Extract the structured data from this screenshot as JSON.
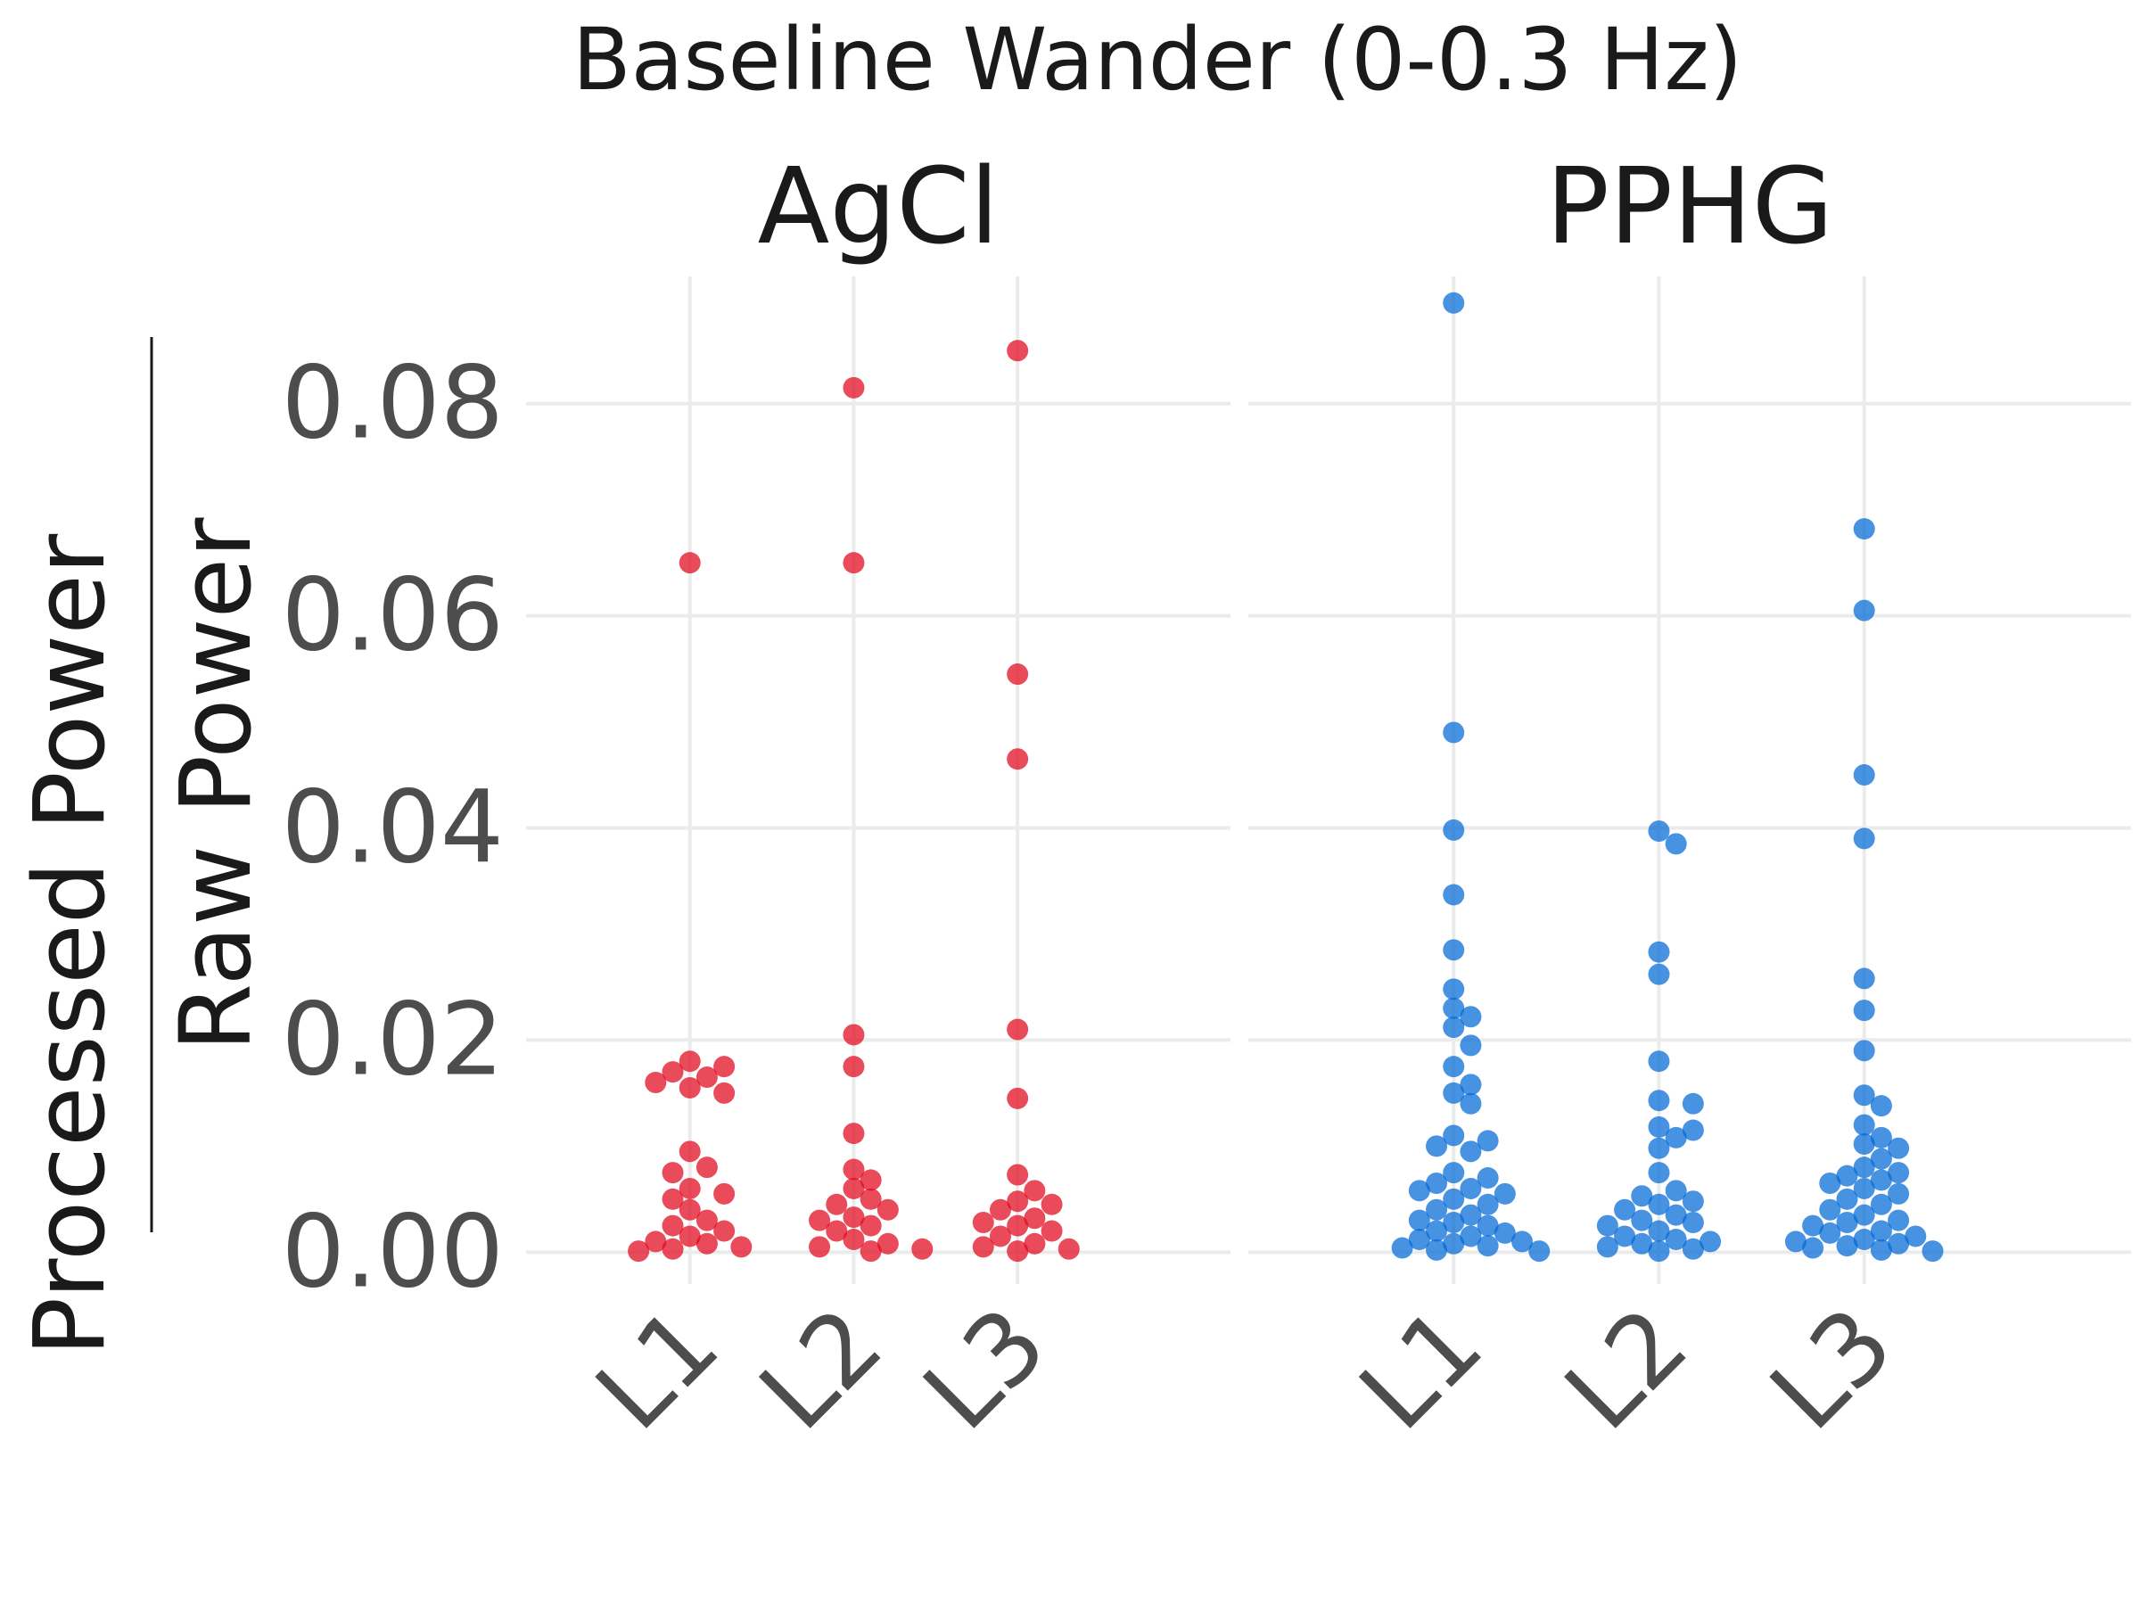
{
  "chart_data": {
    "type": "scatter",
    "title": "Baseline Wander (0-0.3 Hz)",
    "ylabel_numerator": "Processed Power",
    "ylabel_denominator": "Raw Power",
    "xlabel": "",
    "ylim": [
      -0.003,
      0.092
    ],
    "yticks": [
      0,
      0.02,
      0.04,
      0.06,
      0.08
    ],
    "ytick_labels": [
      "0.00",
      "0.02",
      "0.04",
      "0.06",
      "0.08"
    ],
    "categories": [
      "L1",
      "L2",
      "L3"
    ],
    "grid": true,
    "legend": "none",
    "panels": [
      {
        "name": "AgCl",
        "color": "#e0061b",
        "series": [
          {
            "category": "L1",
            "values": [
              0.065,
              0.018,
              0.0175,
              0.017,
              0.0165,
              0.016,
              0.0155,
              0.015,
              0.0095,
              0.008,
              0.0075,
              0.006,
              0.0055,
              0.005,
              0.004,
              0.003,
              0.0025,
              0.002,
              0.0015,
              0.001,
              0.0008,
              0.0005,
              0.0003,
              0.0001
            ]
          },
          {
            "category": "L2",
            "values": [
              0.0815,
              0.065,
              0.0205,
              0.0175,
              0.0112,
              0.0078,
              0.0068,
              0.006,
              0.005,
              0.0045,
              0.004,
              0.0033,
              0.003,
              0.0025,
              0.002,
              0.0012,
              0.0008,
              0.0005,
              0.0003,
              0.0001
            ]
          },
          {
            "category": "L3",
            "values": [
              0.085,
              0.0545,
              0.0465,
              0.021,
              0.0145,
              0.0073,
              0.0058,
              0.0048,
              0.0045,
              0.004,
              0.0032,
              0.0028,
              0.0025,
              0.002,
              0.0015,
              0.0008,
              0.0005,
              0.0003,
              0.0001
            ]
          }
        ]
      },
      {
        "name": "PPHG",
        "color": "#0068d6",
        "series": [
          {
            "category": "L1",
            "values": [
              0.0895,
              0.049,
              0.0398,
              0.0337,
              0.0285,
              0.0248,
              0.023,
              0.0222,
              0.0212,
              0.0195,
              0.0175,
              0.0158,
              0.015,
              0.014,
              0.011,
              0.0105,
              0.01,
              0.0095,
              0.0075,
              0.007,
              0.0065,
              0.006,
              0.0058,
              0.0055,
              0.005,
              0.0045,
              0.004,
              0.0035,
              0.003,
              0.0028,
              0.0025,
              0.002,
              0.0018,
              0.0015,
              0.0012,
              0.001,
              0.0008,
              0.0006,
              0.0004,
              0.0002,
              0.0001
            ]
          },
          {
            "category": "L2",
            "values": [
              0.0397,
              0.0385,
              0.0283,
              0.0262,
              0.018,
              0.0143,
              0.014,
              0.0118,
              0.0115,
              0.0108,
              0.0098,
              0.0075,
              0.0058,
              0.0053,
              0.0048,
              0.0045,
              0.004,
              0.0035,
              0.003,
              0.0028,
              0.0025,
              0.002,
              0.0015,
              0.0012,
              0.001,
              0.0008,
              0.0005,
              0.0003,
              0.0001
            ]
          },
          {
            "category": "L3",
            "values": [
              0.0682,
              0.0605,
              0.045,
              0.039,
              0.0258,
              0.0228,
              0.019,
              0.0148,
              0.0138,
              0.012,
              0.0108,
              0.0102,
              0.0098,
              0.0088,
              0.008,
              0.0075,
              0.0072,
              0.0068,
              0.0065,
              0.006,
              0.0055,
              0.005,
              0.0045,
              0.004,
              0.0035,
              0.003,
              0.0028,
              0.0025,
              0.002,
              0.0018,
              0.0015,
              0.0012,
              0.001,
              0.0008,
              0.0006,
              0.0004,
              0.0002,
              0.0001
            ]
          }
        ]
      }
    ]
  }
}
